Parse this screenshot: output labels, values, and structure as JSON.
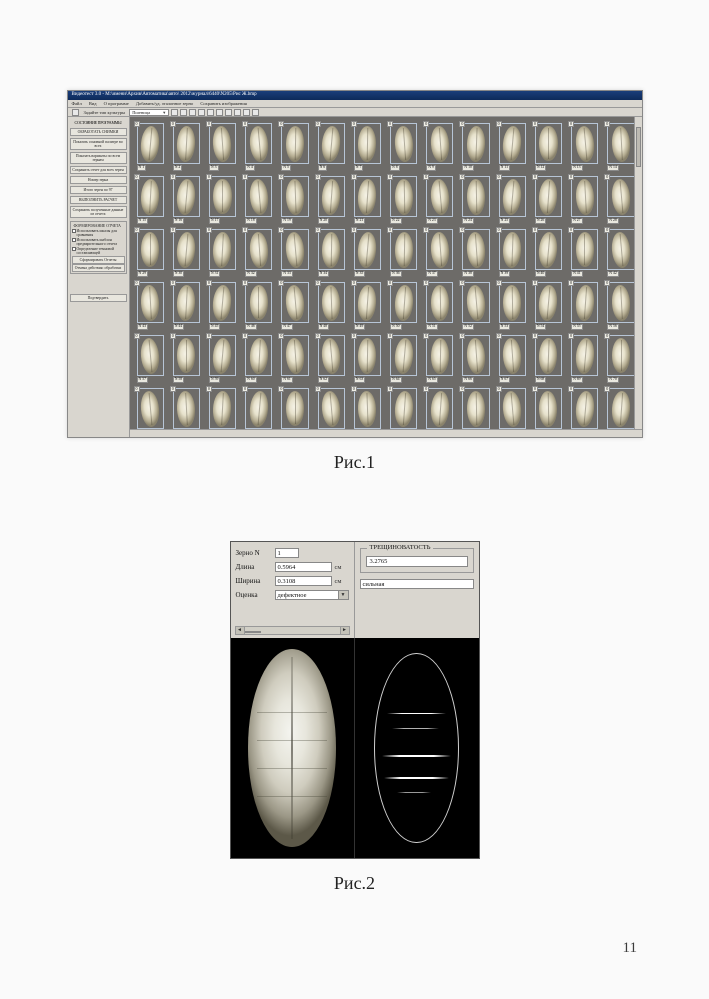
{
  "figure1": {
    "titlebar": "Видеотест 3.0 - M:\\имени\\Архив\\Автоматика\\авто\\ 2012\\журнал\\6440\\N205\\Рис Ж.bmp",
    "menu": [
      "Файл",
      "Вид",
      "О программе",
      "Добавить/уд. эталонное зерно",
      "Сохранить изображения"
    ],
    "toolbar_label": "Задайте тип культуры",
    "toolbar_value": "Пшеница",
    "sidebar": {
      "heading": "СОСТОЯНИЕ ПРОГРАММЫ",
      "btn1": "ОБРАБОТАТЬ СНИМКИ",
      "btn2": "Показать основной палитре во всех",
      "btn3": "Показать варианты по всем зернам",
      "btn4": "Сохранить отчет для всех зерен",
      "btn5": "Номер зерна",
      "btn6": "Итого зерен по 97",
      "btn7": "ВЫПОЛНИТЬ РАСЧЕТ",
      "btn8": "Сохранить полученные данные из отчета",
      "group_title": "ФОРМИРОВАНИЕ ОТЧЕТА",
      "chk1": "Использовать шкалы для сравнения",
      "chk2": "Использовать шаблон предварительного отчета",
      "chk3": "Определение темновой составляющей",
      "btn9": "Сформировать Отчеты",
      "btn10": "Отмена действия: обработки",
      "btn11": "Подтвердить"
    },
    "cell_badge": "0",
    "grid": {
      "rows": 6,
      "cols": 14,
      "start_index": 1
    },
    "caption": "Рис.1"
  },
  "figure2": {
    "left": {
      "label_seed": "Зерно N",
      "seed_value": "1",
      "label_length": "Длина",
      "length_value": "0.5964",
      "label_width": "Ширина",
      "width_value": "0.3108",
      "unit": "см",
      "label_assessment": "Оценка",
      "assessment_value": "дефектное"
    },
    "right": {
      "group_title": "ТРЕЩИНОВАТОСТЬ",
      "crack_value": "3.2765",
      "severity_value": "сильная"
    },
    "caption": "Рис.2"
  },
  "page_number": "11",
  "colors": {
    "page_bg": "#fafafa",
    "win_chrome": "#d9d6cf",
    "grid_bg": "#6d6b68",
    "titlebar": "#1a3e7a",
    "black": "#000000"
  }
}
